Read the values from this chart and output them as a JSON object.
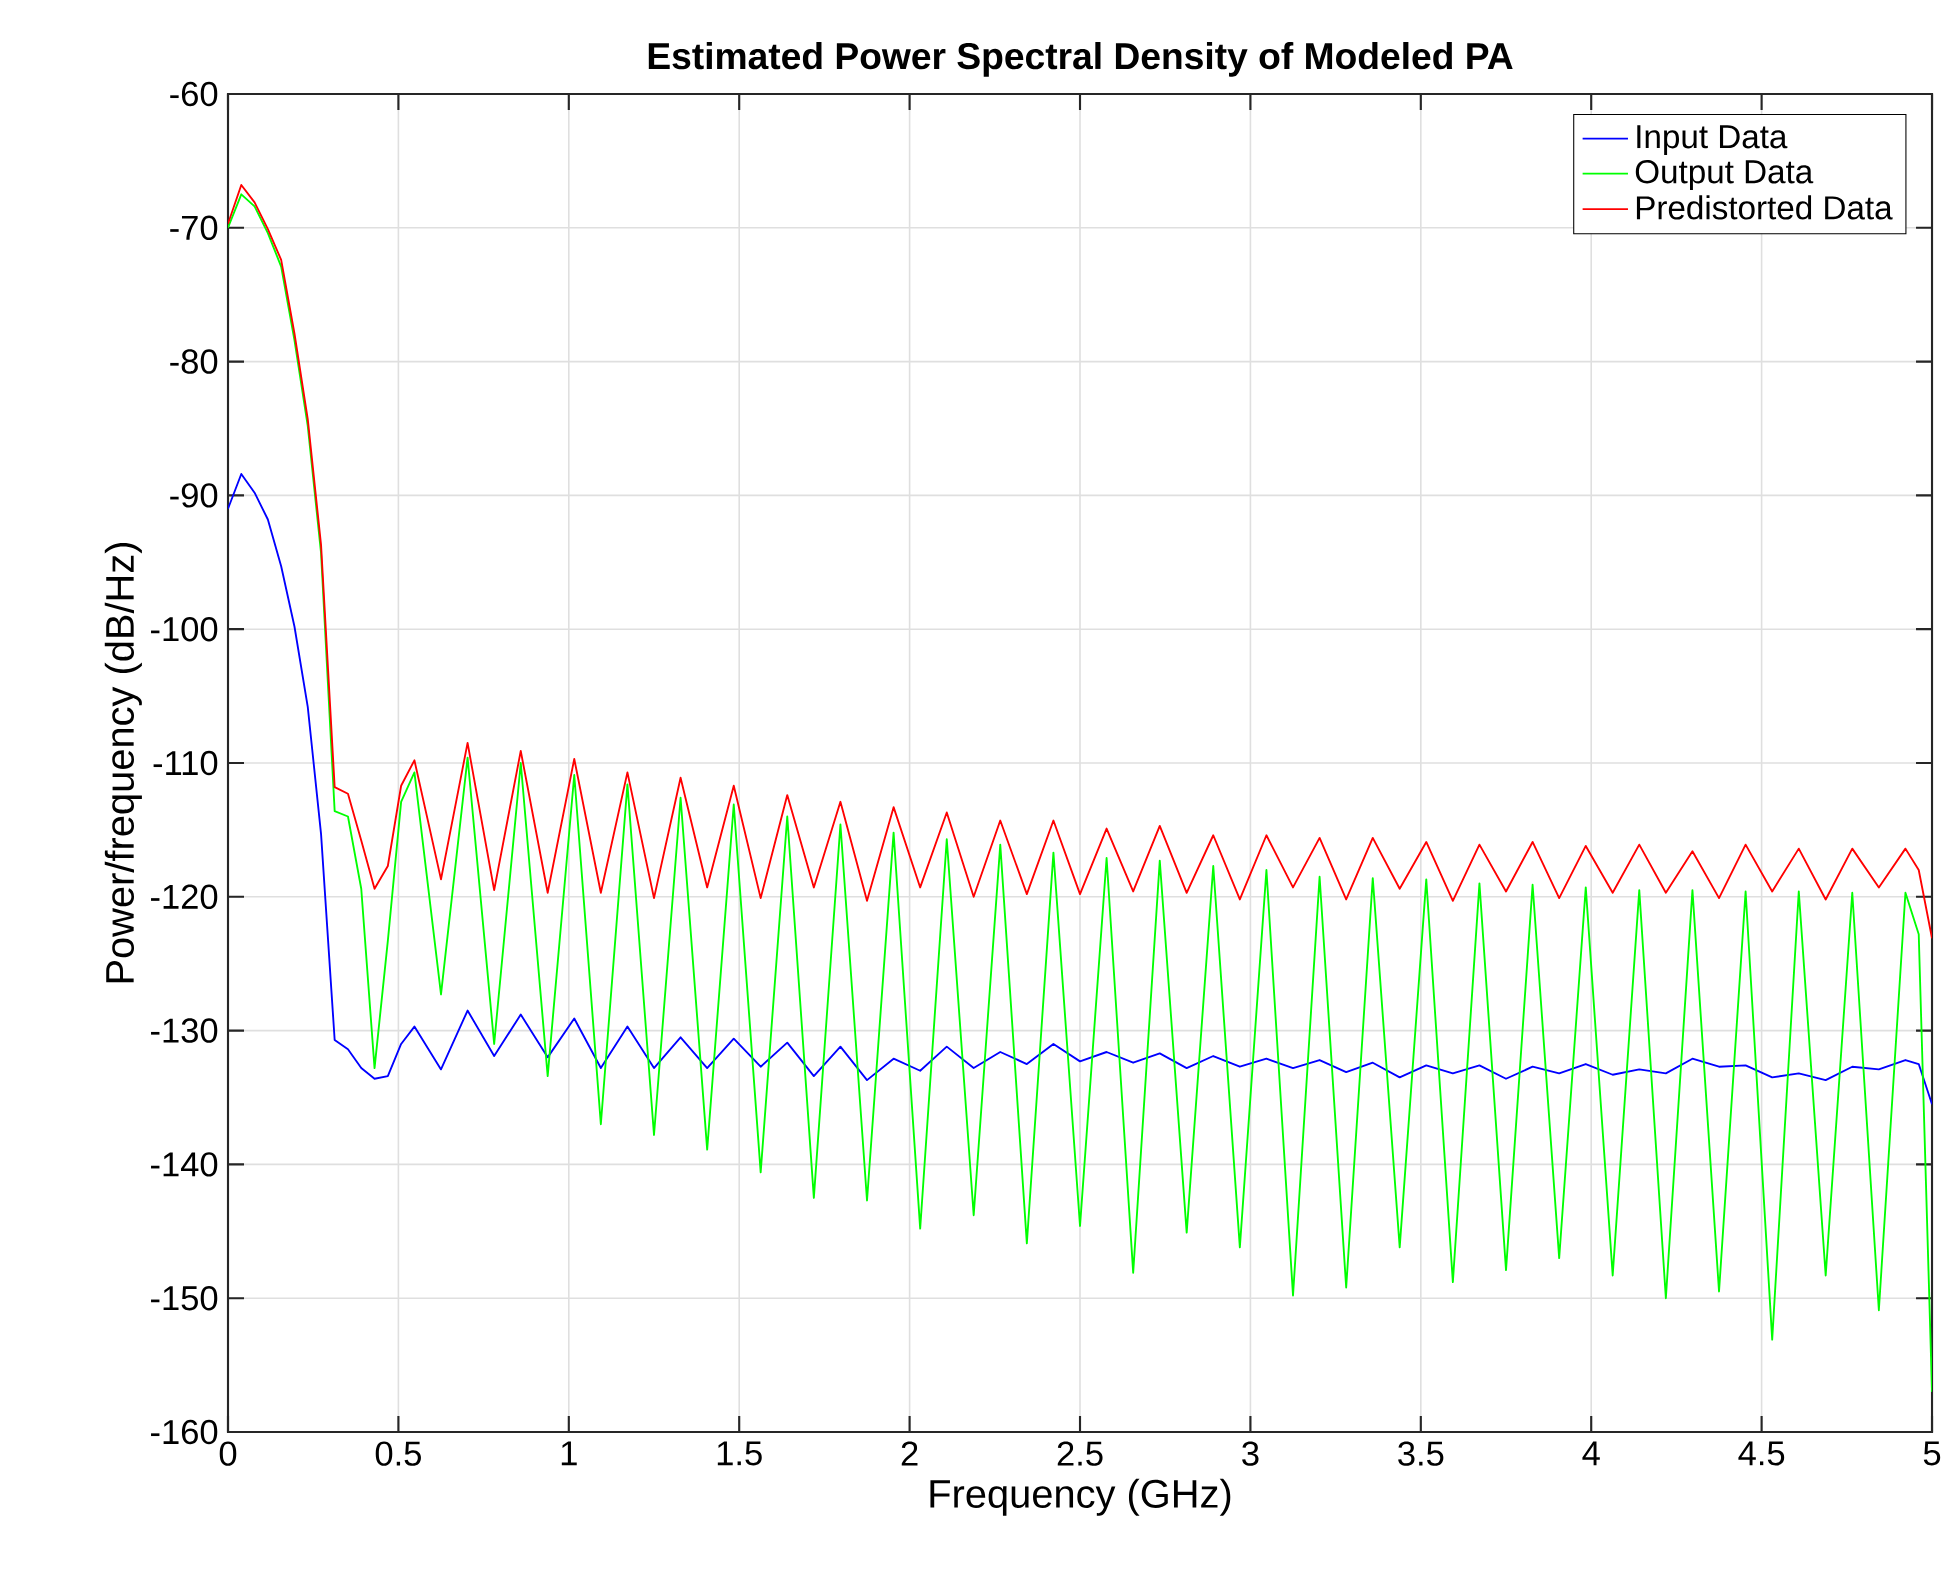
{
  "chart_data": {
    "type": "line",
    "title": "Estimated Power Spectral Density of Modeled PA",
    "xlabel": "Frequency (GHz)",
    "ylabel": "Power/frequency (dB/Hz)",
    "x": [
      0,
      0.039,
      0.078,
      0.117,
      0.156,
      0.195,
      0.234,
      0.273,
      0.313,
      0.352,
      0.391,
      0.43,
      0.469,
      0.508,
      0.547,
      0.625,
      0.703,
      0.781,
      0.859,
      0.938,
      1.016,
      1.094,
      1.172,
      1.25,
      1.328,
      1.406,
      1.484,
      1.563,
      1.641,
      1.719,
      1.797,
      1.875,
      1.953,
      2.031,
      2.109,
      2.188,
      2.266,
      2.344,
      2.422,
      2.5,
      2.578,
      2.656,
      2.734,
      2.813,
      2.891,
      2.969,
      3.047,
      3.125,
      3.203,
      3.281,
      3.359,
      3.438,
      3.516,
      3.594,
      3.672,
      3.75,
      3.828,
      3.906,
      3.984,
      4.063,
      4.141,
      4.219,
      4.297,
      4.375,
      4.453,
      4.531,
      4.609,
      4.688,
      4.766,
      4.844,
      4.922,
      4.961,
      5
    ],
    "series": [
      {
        "name": "Input Data",
        "color": "#0000ff",
        "values": [
          -91.0,
          -88.4,
          -89.8,
          -91.8,
          -95.3,
          -99.8,
          -105.8,
          -115.3,
          -130.7,
          -131.4,
          -132.8,
          -133.6,
          -133.4,
          -131.0,
          -129.7,
          -132.9,
          -128.5,
          -131.9,
          -128.8,
          -132.0,
          -129.1,
          -132.8,
          -129.7,
          -132.8,
          -130.5,
          -132.8,
          -130.6,
          -132.7,
          -130.9,
          -133.4,
          -131.2,
          -133.7,
          -132.1,
          -133.0,
          -131.2,
          -132.8,
          -131.6,
          -132.5,
          -131.0,
          -132.3,
          -131.6,
          -132.4,
          -131.7,
          -132.8,
          -131.9,
          -132.7,
          -132.1,
          -132.8,
          -132.2,
          -133.1,
          -132.4,
          -133.5,
          -132.6,
          -133.2,
          -132.6,
          -133.6,
          -132.7,
          -133.2,
          -132.5,
          -133.3,
          -132.9,
          -133.2,
          -132.1,
          -132.7,
          -132.6,
          -133.5,
          -133.2,
          -133.7,
          -132.7,
          -132.9,
          -132.2,
          -132.5,
          -135.5
        ]
      },
      {
        "name": "Output Data",
        "color": "#00ff00",
        "values": [
          -70.0,
          -67.5,
          -68.4,
          -70.4,
          -72.9,
          -78.4,
          -84.8,
          -94.3,
          -113.6,
          -114.0,
          -119.4,
          -132.8,
          -123.3,
          -112.9,
          -110.7,
          -127.3,
          -109.6,
          -131.0,
          -110.0,
          -133.4,
          -110.9,
          -137.0,
          -111.6,
          -137.8,
          -112.6,
          -138.9,
          -113.1,
          -140.6,
          -114.0,
          -142.5,
          -114.6,
          -142.7,
          -115.2,
          -144.8,
          -115.7,
          -143.8,
          -116.1,
          -145.9,
          -116.7,
          -144.6,
          -117.1,
          -148.1,
          -117.3,
          -145.1,
          -117.7,
          -146.2,
          -118.0,
          -149.8,
          -118.5,
          -149.2,
          -118.6,
          -146.2,
          -118.7,
          -148.8,
          -119.0,
          -147.9,
          -119.1,
          -147.0,
          -119.3,
          -148.3,
          -119.5,
          -150.0,
          -119.5,
          -149.5,
          -119.6,
          -153.1,
          -119.6,
          -148.3,
          -119.7,
          -150.9,
          -119.7,
          -122.8,
          -157.0
        ]
      },
      {
        "name": "Predistorted Data",
        "color": "#ff0000",
        "values": [
          -69.7,
          -66.8,
          -68.1,
          -70.1,
          -72.4,
          -77.9,
          -84.3,
          -93.7,
          -111.8,
          -112.3,
          -115.8,
          -119.4,
          -117.7,
          -111.7,
          -109.8,
          -118.7,
          -108.5,
          -119.5,
          -109.1,
          -119.7,
          -109.7,
          -119.7,
          -110.7,
          -120.1,
          -111.1,
          -119.3,
          -111.7,
          -120.1,
          -112.4,
          -119.3,
          -112.9,
          -120.3,
          -113.3,
          -119.3,
          -113.7,
          -120.0,
          -114.3,
          -119.8,
          -114.3,
          -119.8,
          -114.9,
          -119.6,
          -114.7,
          -119.7,
          -115.4,
          -120.2,
          -115.4,
          -119.3,
          -115.6,
          -120.2,
          -115.6,
          -119.4,
          -115.9,
          -120.3,
          -116.1,
          -119.6,
          -115.9,
          -120.1,
          -116.2,
          -119.7,
          -116.1,
          -119.7,
          -116.6,
          -120.1,
          -116.1,
          -119.6,
          -116.4,
          -120.2,
          -116.4,
          -119.3,
          -116.4,
          -118.0,
          -123.1
        ]
      }
    ],
    "xlim": [
      0,
      5
    ],
    "ylim": [
      -160,
      -60
    ],
    "xticks": [
      0,
      0.5,
      1,
      1.5,
      2,
      2.5,
      3,
      3.5,
      4,
      4.5,
      5
    ],
    "yticks": [
      -160,
      -150,
      -140,
      -130,
      -120,
      -110,
      -100,
      -90,
      -80,
      -70,
      -60
    ],
    "grid": true,
    "legend": "top right",
    "marker": "none",
    "line_style": "solid"
  }
}
